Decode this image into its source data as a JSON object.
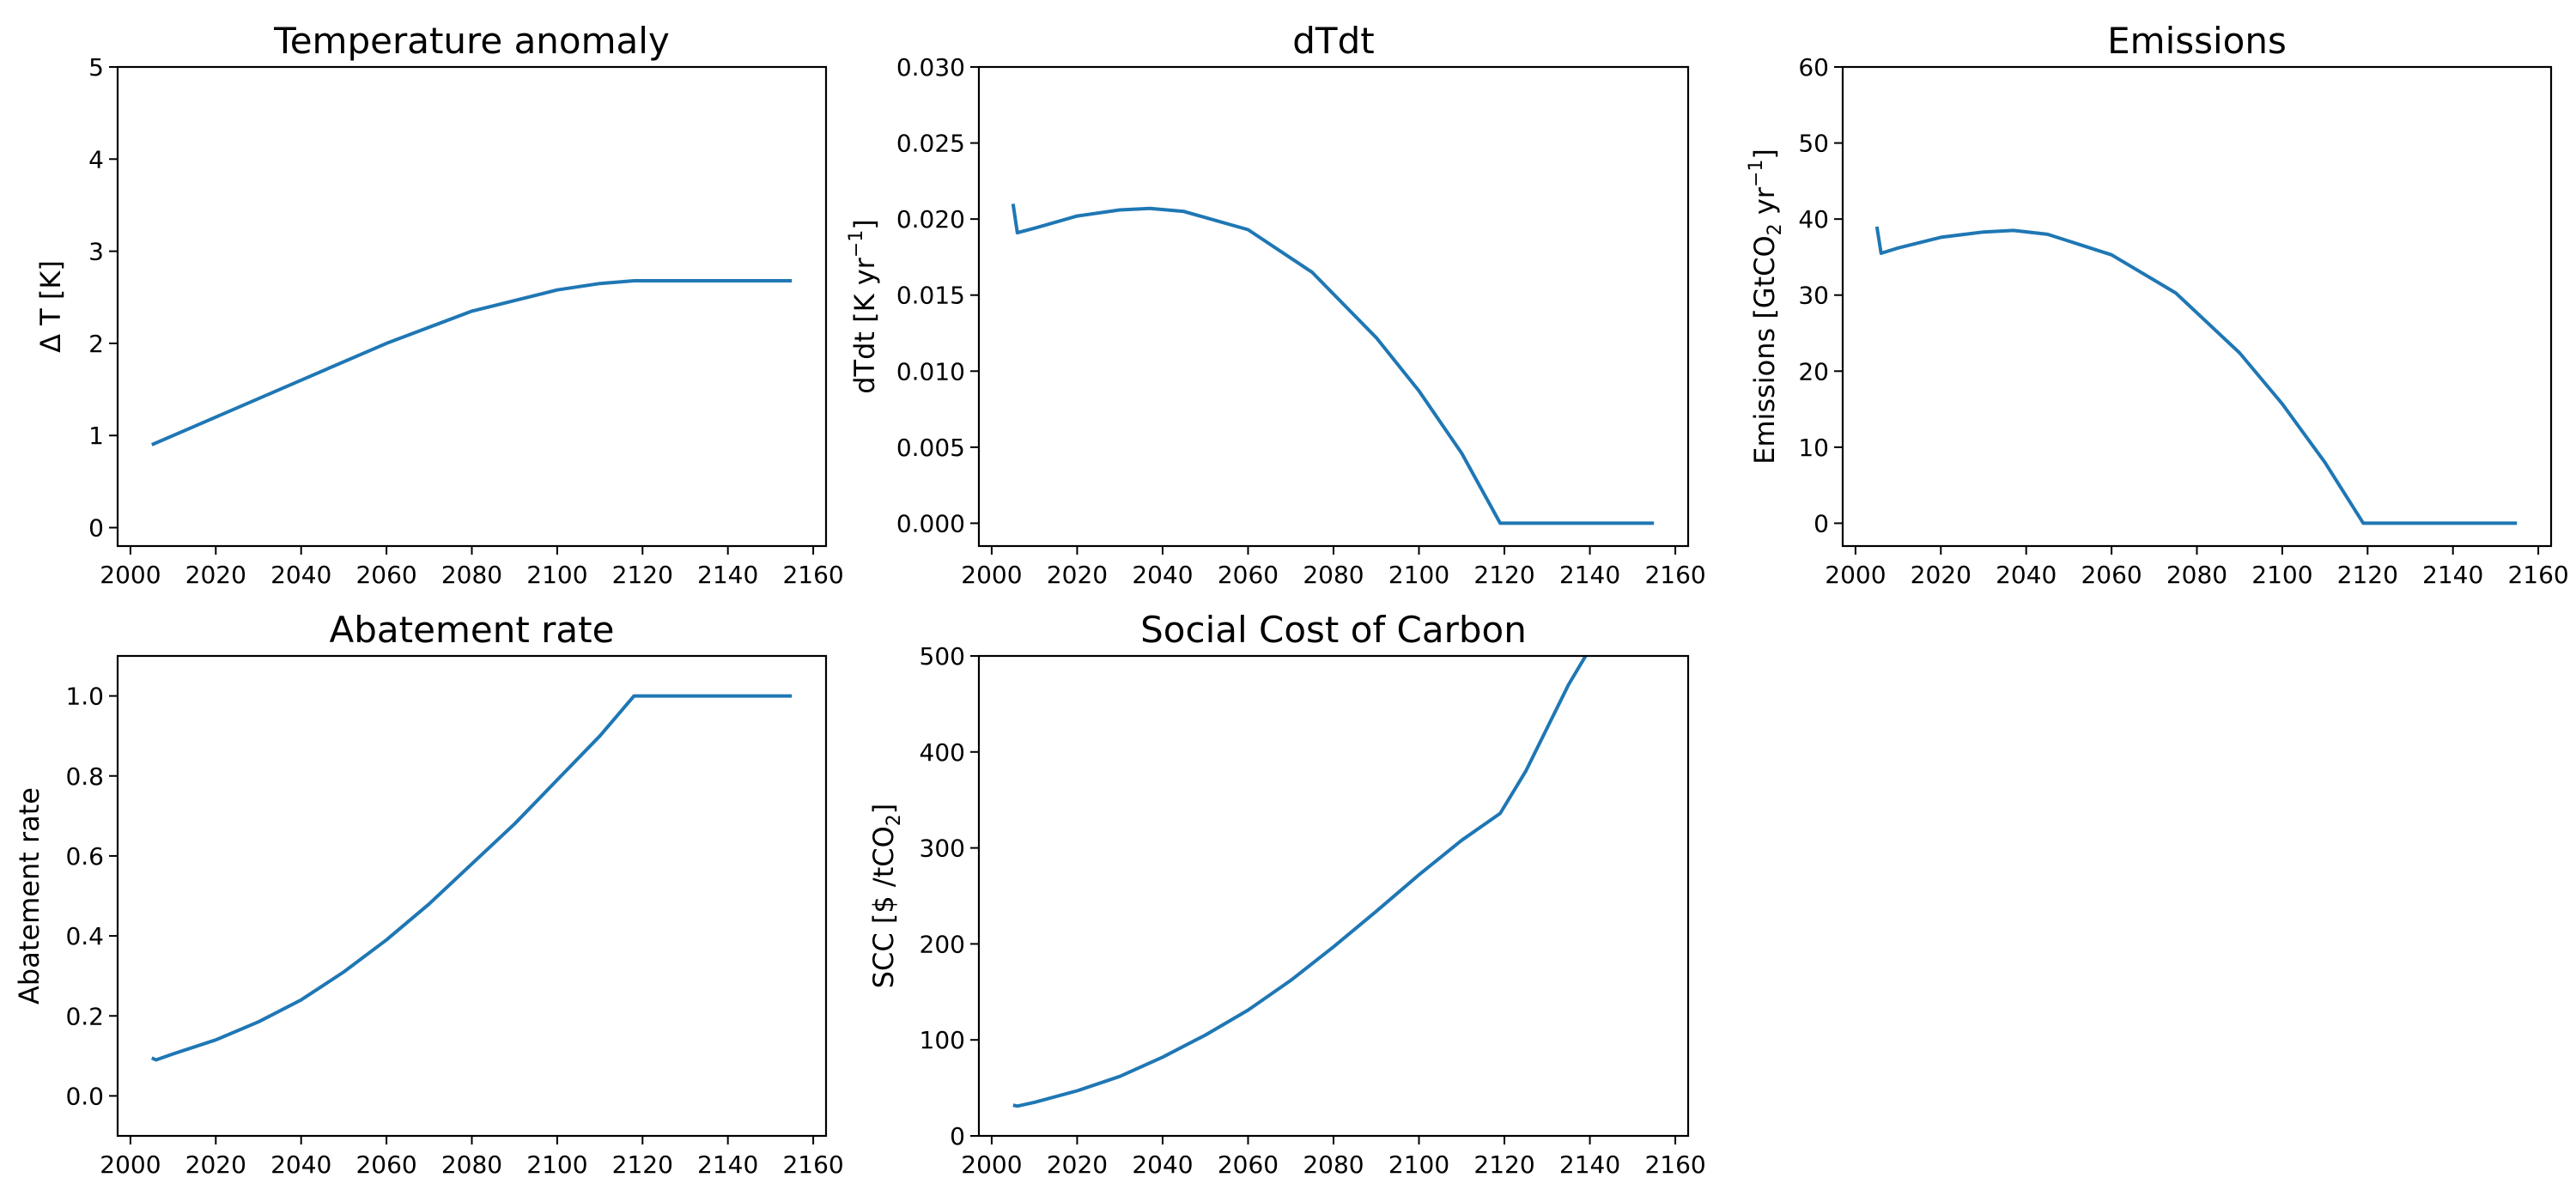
{
  "chart_data": [
    {
      "type": "line",
      "title": "Temperature anomaly",
      "ylabel": "Δ T [K]",
      "xlim": [
        1997,
        2163
      ],
      "ylim": [
        -0.2,
        5
      ],
      "xticks": [
        2000,
        2020,
        2040,
        2060,
        2080,
        2100,
        2120,
        2140,
        2160
      ],
      "xtick_labels": [
        "2000",
        "2020",
        "2040",
        "2060",
        "2080",
        "2100",
        "2120",
        "2140",
        "2160"
      ],
      "yticks": [
        0,
        1,
        2,
        3,
        4,
        5
      ],
      "ytick_labels": [
        "0",
        "1",
        "2",
        "3",
        "4",
        "5"
      ],
      "grid": false,
      "color": "#1f77b4",
      "x": [
        2005,
        2020,
        2040,
        2060,
        2080,
        2100,
        2110,
        2118,
        2130,
        2155
      ],
      "y": [
        0.9,
        1.2,
        1.6,
        2.0,
        2.35,
        2.58,
        2.65,
        2.68,
        2.68,
        2.68
      ]
    },
    {
      "type": "line",
      "title": "dTdt",
      "ylabel": "dTdt [K yr",
      "ylabel_sup": "−1",
      "ylabel_end": "]",
      "xlim": [
        1997,
        2163
      ],
      "ylim": [
        -0.0015,
        0.03
      ],
      "xticks": [
        2000,
        2020,
        2040,
        2060,
        2080,
        2100,
        2120,
        2140,
        2160
      ],
      "xtick_labels": [
        "2000",
        "2020",
        "2040",
        "2060",
        "2080",
        "2100",
        "2120",
        "2140",
        "2160"
      ],
      "yticks": [
        0,
        0.005,
        0.01,
        0.015,
        0.02,
        0.025,
        0.03
      ],
      "ytick_labels": [
        "0.000",
        "0.005",
        "0.010",
        "0.015",
        "0.020",
        "0.025",
        "0.030"
      ],
      "grid": false,
      "color": "#1f77b4",
      "x": [
        2005,
        2006,
        2010,
        2020,
        2030,
        2037,
        2045,
        2060,
        2075,
        2090,
        2100,
        2110,
        2119,
        2130,
        2155
      ],
      "y": [
        0.021,
        0.0191,
        0.0194,
        0.0202,
        0.0206,
        0.0207,
        0.0205,
        0.0193,
        0.0165,
        0.0122,
        0.0087,
        0.0046,
        0.0,
        0.0,
        0.0
      ]
    },
    {
      "type": "line",
      "title": "Emissions",
      "ylabel": "Emissions [GtCO",
      "ylabel_sub": "2",
      "ylabel_mid": " yr",
      "ylabel_sup": "−1",
      "ylabel_end": "]",
      "xlim": [
        1997,
        2163
      ],
      "ylim": [
        -3,
        60
      ],
      "xticks": [
        2000,
        2020,
        2040,
        2060,
        2080,
        2100,
        2120,
        2140,
        2160
      ],
      "xtick_labels": [
        "2000",
        "2020",
        "2040",
        "2060",
        "2080",
        "2100",
        "2120",
        "2140",
        "2160"
      ],
      "yticks": [
        0,
        10,
        20,
        30,
        40,
        50,
        60
      ],
      "ytick_labels": [
        "0",
        "10",
        "20",
        "30",
        "40",
        "50",
        "60"
      ],
      "grid": false,
      "color": "#1f77b4",
      "x": [
        2005,
        2006,
        2010,
        2020,
        2030,
        2037,
        2045,
        2060,
        2075,
        2090,
        2100,
        2110,
        2119,
        2130,
        2155
      ],
      "y": [
        39,
        35.5,
        36.2,
        37.6,
        38.3,
        38.5,
        38.0,
        35.3,
        30.3,
        22.4,
        15.7,
        8.0,
        0.0,
        0.0,
        0.0
      ]
    },
    {
      "type": "line",
      "title": "Abatement rate",
      "ylabel": "Abatement rate",
      "xlim": [
        1997,
        2163
      ],
      "ylim": [
        -0.1,
        1.1
      ],
      "xticks": [
        2000,
        2020,
        2040,
        2060,
        2080,
        2100,
        2120,
        2140,
        2160
      ],
      "xtick_labels": [
        "2000",
        "2020",
        "2040",
        "2060",
        "2080",
        "2100",
        "2120",
        "2140",
        "2160"
      ],
      "yticks": [
        0,
        0.2,
        0.4,
        0.6,
        0.8,
        1.0
      ],
      "ytick_labels": [
        "0.0",
        "0.2",
        "0.4",
        "0.6",
        "0.8",
        "1.0"
      ],
      "grid": false,
      "color": "#1f77b4",
      "x": [
        2005,
        2006,
        2010,
        2020,
        2030,
        2040,
        2050,
        2060,
        2070,
        2080,
        2090,
        2100,
        2110,
        2118,
        2130,
        2155
      ],
      "y": [
        0.095,
        0.09,
        0.105,
        0.14,
        0.185,
        0.24,
        0.31,
        0.39,
        0.48,
        0.58,
        0.68,
        0.79,
        0.9,
        1.0,
        1.0,
        1.0
      ]
    },
    {
      "type": "line",
      "title": "Social Cost of Carbon",
      "ylabel": "SCC [$ /tCO",
      "ylabel_sub": "2",
      "ylabel_end": "]",
      "xlim": [
        1997,
        2163
      ],
      "ylim": [
        0,
        500
      ],
      "xticks": [
        2000,
        2020,
        2040,
        2060,
        2080,
        2100,
        2120,
        2140,
        2160
      ],
      "xtick_labels": [
        "2000",
        "2020",
        "2040",
        "2060",
        "2080",
        "2100",
        "2120",
        "2140",
        "2160"
      ],
      "yticks": [
        0,
        100,
        200,
        300,
        400,
        500
      ],
      "ytick_labels": [
        "0",
        "100",
        "200",
        "300",
        "400",
        "500"
      ],
      "grid": false,
      "color": "#1f77b4",
      "x": [
        2005,
        2006,
        2010,
        2020,
        2030,
        2040,
        2050,
        2060,
        2070,
        2080,
        2090,
        2100,
        2110,
        2119,
        2125,
        2130,
        2135,
        2139
      ],
      "y": [
        32,
        31,
        35,
        47,
        62,
        82,
        105,
        131,
        162,
        197,
        234,
        272,
        308,
        336,
        380,
        425,
        470,
        500
      ]
    }
  ]
}
